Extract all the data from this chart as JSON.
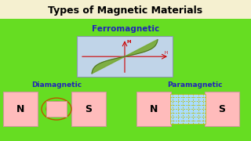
{
  "title": "Types of Magnetic Materials",
  "title_fontsize": 9,
  "title_color": "#000000",
  "title_bg": "#f5f0d0",
  "main_bg_top": "#44dd00",
  "main_bg_bot": "#88ee66",
  "ferromagnetic_label": "Ferromagnetic",
  "ferromagnetic_color": "#2222bb",
  "diamagnetic_label": "Diamagnetic",
  "diamagnetic_color": "#2222bb",
  "paramagnetic_label": "Paramagnetic",
  "paramagnetic_color": "#2222bb",
  "hysteresis_box_color": "#c0d4e8",
  "hysteresis_curve_color": "#77aa33",
  "magnet_fill": "#ffbbbb",
  "magnet_edge": "#cc9999",
  "dia_oval_color": "#bb5500",
  "dia_inner_fill": "#ffbbbb",
  "para_grid_color": "#bbbb00",
  "para_inner_color": "#aaddff"
}
